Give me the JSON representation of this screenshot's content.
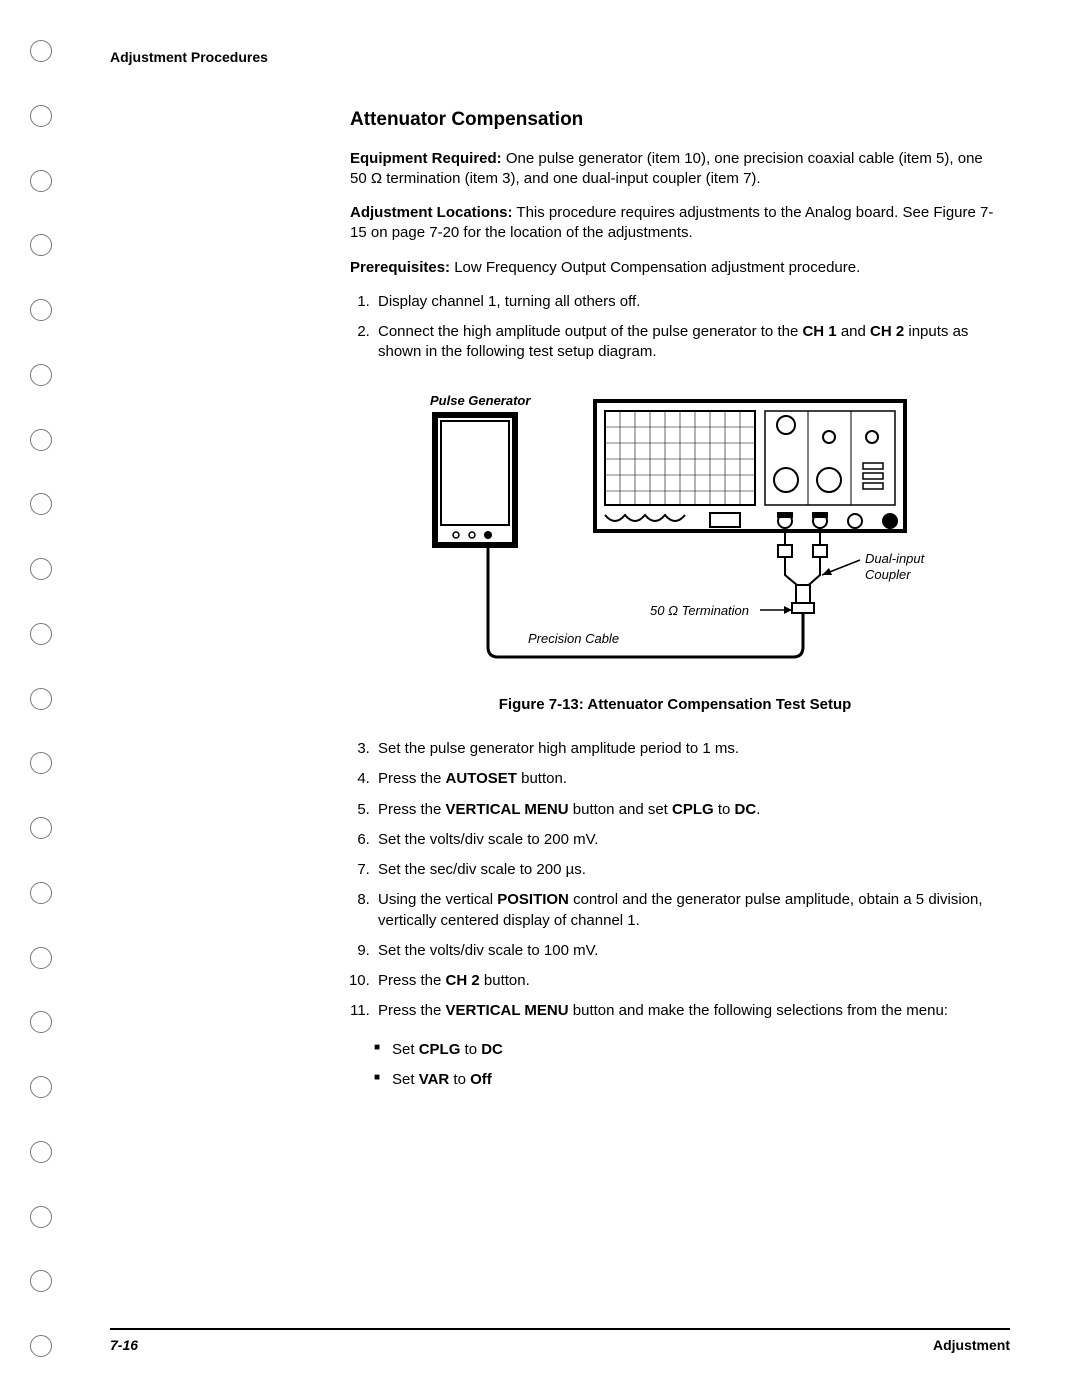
{
  "header": {
    "label": "Adjustment Procedures"
  },
  "section": {
    "title": "Attenuator Compensation",
    "equipment_label": "Equipment Required:",
    "equipment_text": " One pulse generator (item 10), one precision coaxial cable (item 5), one 50 Ω termination (item 3), and one dual-input coupler (item 7).",
    "locations_label": "Adjustment Locations:",
    "locations_text": " This procedure requires adjustments to the Analog board. See Figure 7-15 on page 7-20 for the location of the adjustments.",
    "prereq_label": "Prerequisites:",
    "prereq_text": " Low Frequency Output Compensation adjustment procedure."
  },
  "steps_a": [
    "Display channel 1, turning all others off.",
    "Connect the high amplitude output of the pulse generator to the <b>CH 1</b> and <b>CH 2</b> inputs as shown in the following test setup diagram."
  ],
  "figure": {
    "caption": "Figure 7-13: Attenuator Compensation Test Setup",
    "labels": {
      "pulse_generator": "Pulse Generator",
      "dual_coupler_1": "Dual-input",
      "dual_coupler_2": "Coupler",
      "termination": "50 Ω Termination",
      "precision_cable": "Precision Cable"
    },
    "style": {
      "stroke": "#000000",
      "background": "#ffffff",
      "font_italic": true,
      "font_size_labels": 13
    }
  },
  "steps_b": [
    "Set the pulse generator high amplitude period to 1 ms.",
    "Press the <b>AUTOSET</b> button.",
    "Press the <b>VERTICAL MENU</b> button and set <b>CPLG</b> to <b>DC</b>.",
    "Set the volts/div scale to 200 mV.",
    "Set the sec/div scale to 200 µs.",
    "Using the vertical <b>POSITION</b> control and the generator pulse amplitude, obtain a 5 division, vertically centered display of channel 1.",
    "Set the volts/div scale to 100 mV.",
    "Press the <b>CH 2</b> button.",
    "Press the <b>VERTICAL MENU</b> button and make the following selections from the menu:"
  ],
  "bullets": [
    "Set <b>CPLG</b> to <b>DC</b>",
    "Set <b>VAR</b> to <b>Off</b>"
  ],
  "footer": {
    "page": "7-16",
    "label": "Adjustment"
  },
  "binding": {
    "count": 21
  }
}
